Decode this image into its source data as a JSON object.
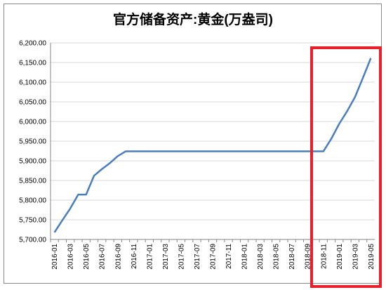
{
  "chart_data": {
    "type": "line",
    "title": "官方储备资产:黄金(万盎司)",
    "categories": [
      "2016-01",
      null,
      "2016-03",
      null,
      "2016-05",
      null,
      "2016-07",
      null,
      "2016-09",
      null,
      "2016-11",
      null,
      "2017-01",
      null,
      "2017-03",
      null,
      "2017-05",
      null,
      "2017-07",
      null,
      "2017-09",
      null,
      "2017-11",
      null,
      "2018-01",
      null,
      "2018-03",
      null,
      "2018-05",
      null,
      "2018-07",
      null,
      "2018-09",
      null,
      "2018-11",
      null,
      "2019-01",
      null,
      "2019-03",
      null,
      "2019-05"
    ],
    "values": [
      5718,
      5749,
      5779,
      5814,
      5814,
      5862,
      5879,
      5894,
      5912,
      5924,
      5924,
      5924,
      5924,
      5924,
      5924,
      5924,
      5924,
      5924,
      5924,
      5924,
      5924,
      5924,
      5924,
      5924,
      5924,
      5924,
      5924,
      5924,
      5924,
      5924,
      5924,
      5924,
      5924,
      5924,
      5924,
      5956,
      5994,
      6026,
      6062,
      6111,
      6161
    ],
    "color": "#4a7ebb",
    "ylim": [
      5700,
      6200
    ],
    "yticks": [
      {
        "value": 5700,
        "label": "5,700.00"
      },
      {
        "value": 5750,
        "label": "5,750.00"
      },
      {
        "value": 5800,
        "label": "5,800.00"
      },
      {
        "value": 5850,
        "label": "5,850.00"
      },
      {
        "value": 5900,
        "label": "5,900.00"
      },
      {
        "value": 5950,
        "label": "5,950.00"
      },
      {
        "value": 6000,
        "label": "6,000.00"
      },
      {
        "value": 6050,
        "label": "6,050.00"
      },
      {
        "value": 6100,
        "label": "6,100.00"
      },
      {
        "value": 6150,
        "label": "6,150.00"
      },
      {
        "value": 6200,
        "label": "6,200.00"
      }
    ],
    "grid": true
  }
}
